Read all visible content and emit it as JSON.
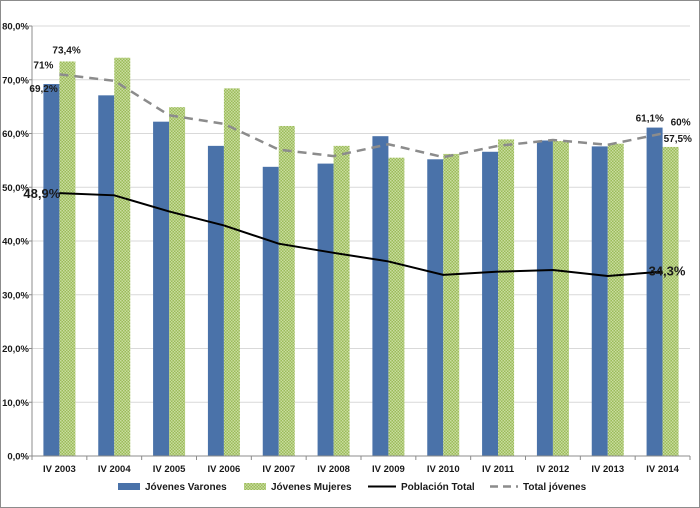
{
  "chart_data": {
    "type": "bar",
    "categories": [
      "IV 2003",
      "IV 2004",
      "IV 2005",
      "IV 2006",
      "IV 2007",
      "IV 2008",
      "IV 2009",
      "IV 2010",
      "IV 2011",
      "IV 2012",
      "IV 2013",
      "IV 2014"
    ],
    "y_ticks": [
      "0,0%",
      "10,0%",
      "20,0%",
      "30,0%",
      "40,0%",
      "50,0%",
      "60,0%",
      "70,0%",
      "80,0%"
    ],
    "ylim": [
      0,
      80
    ],
    "grid": true,
    "legend_position": "bottom",
    "series": [
      {
        "name": "Jóvenes Varones",
        "kind": "bar",
        "color": "#4a72a9",
        "values": [
          69.2,
          67.1,
          62.2,
          57.7,
          53.8,
          54.4,
          59.5,
          55.2,
          56.6,
          58.7,
          57.6,
          61.1
        ]
      },
      {
        "name": "Jóvenes Mujeres",
        "kind": "bar",
        "color": "#9bbb59",
        "values": [
          73.4,
          74.1,
          64.9,
          68.4,
          61.4,
          57.7,
          55.5,
          56.2,
          58.9,
          58.6,
          58.1,
          57.5
        ]
      },
      {
        "name": "Población Total",
        "kind": "line",
        "color": "#000000",
        "values": [
          48.9,
          48.5,
          45.5,
          42.9,
          39.5,
          37.8,
          36.2,
          33.7,
          34.3,
          34.6,
          33.5,
          34.3
        ]
      },
      {
        "name": "Total jóvenes",
        "kind": "dashed-line",
        "color": "#8c8c8c",
        "values": [
          71.0,
          69.8,
          63.4,
          61.8,
          57.0,
          55.8,
          58.0,
          55.6,
          57.7,
          58.8,
          57.9,
          60.0
        ]
      }
    ],
    "annotations": [
      {
        "text": "73,4%",
        "series": 1,
        "index": 0
      },
      {
        "text": "71%",
        "series": 3,
        "index": 0
      },
      {
        "text": "69,2%",
        "series": 0,
        "index": 0
      },
      {
        "text": "48,9%",
        "series": 2,
        "index": 0
      },
      {
        "text": "61,1%",
        "series": 0,
        "index": 11
      },
      {
        "text": "60%",
        "series": 3,
        "index": 11
      },
      {
        "text": "57,5%",
        "series": 1,
        "index": 11
      },
      {
        "text": "34,3%",
        "series": 2,
        "index": 11
      }
    ]
  }
}
